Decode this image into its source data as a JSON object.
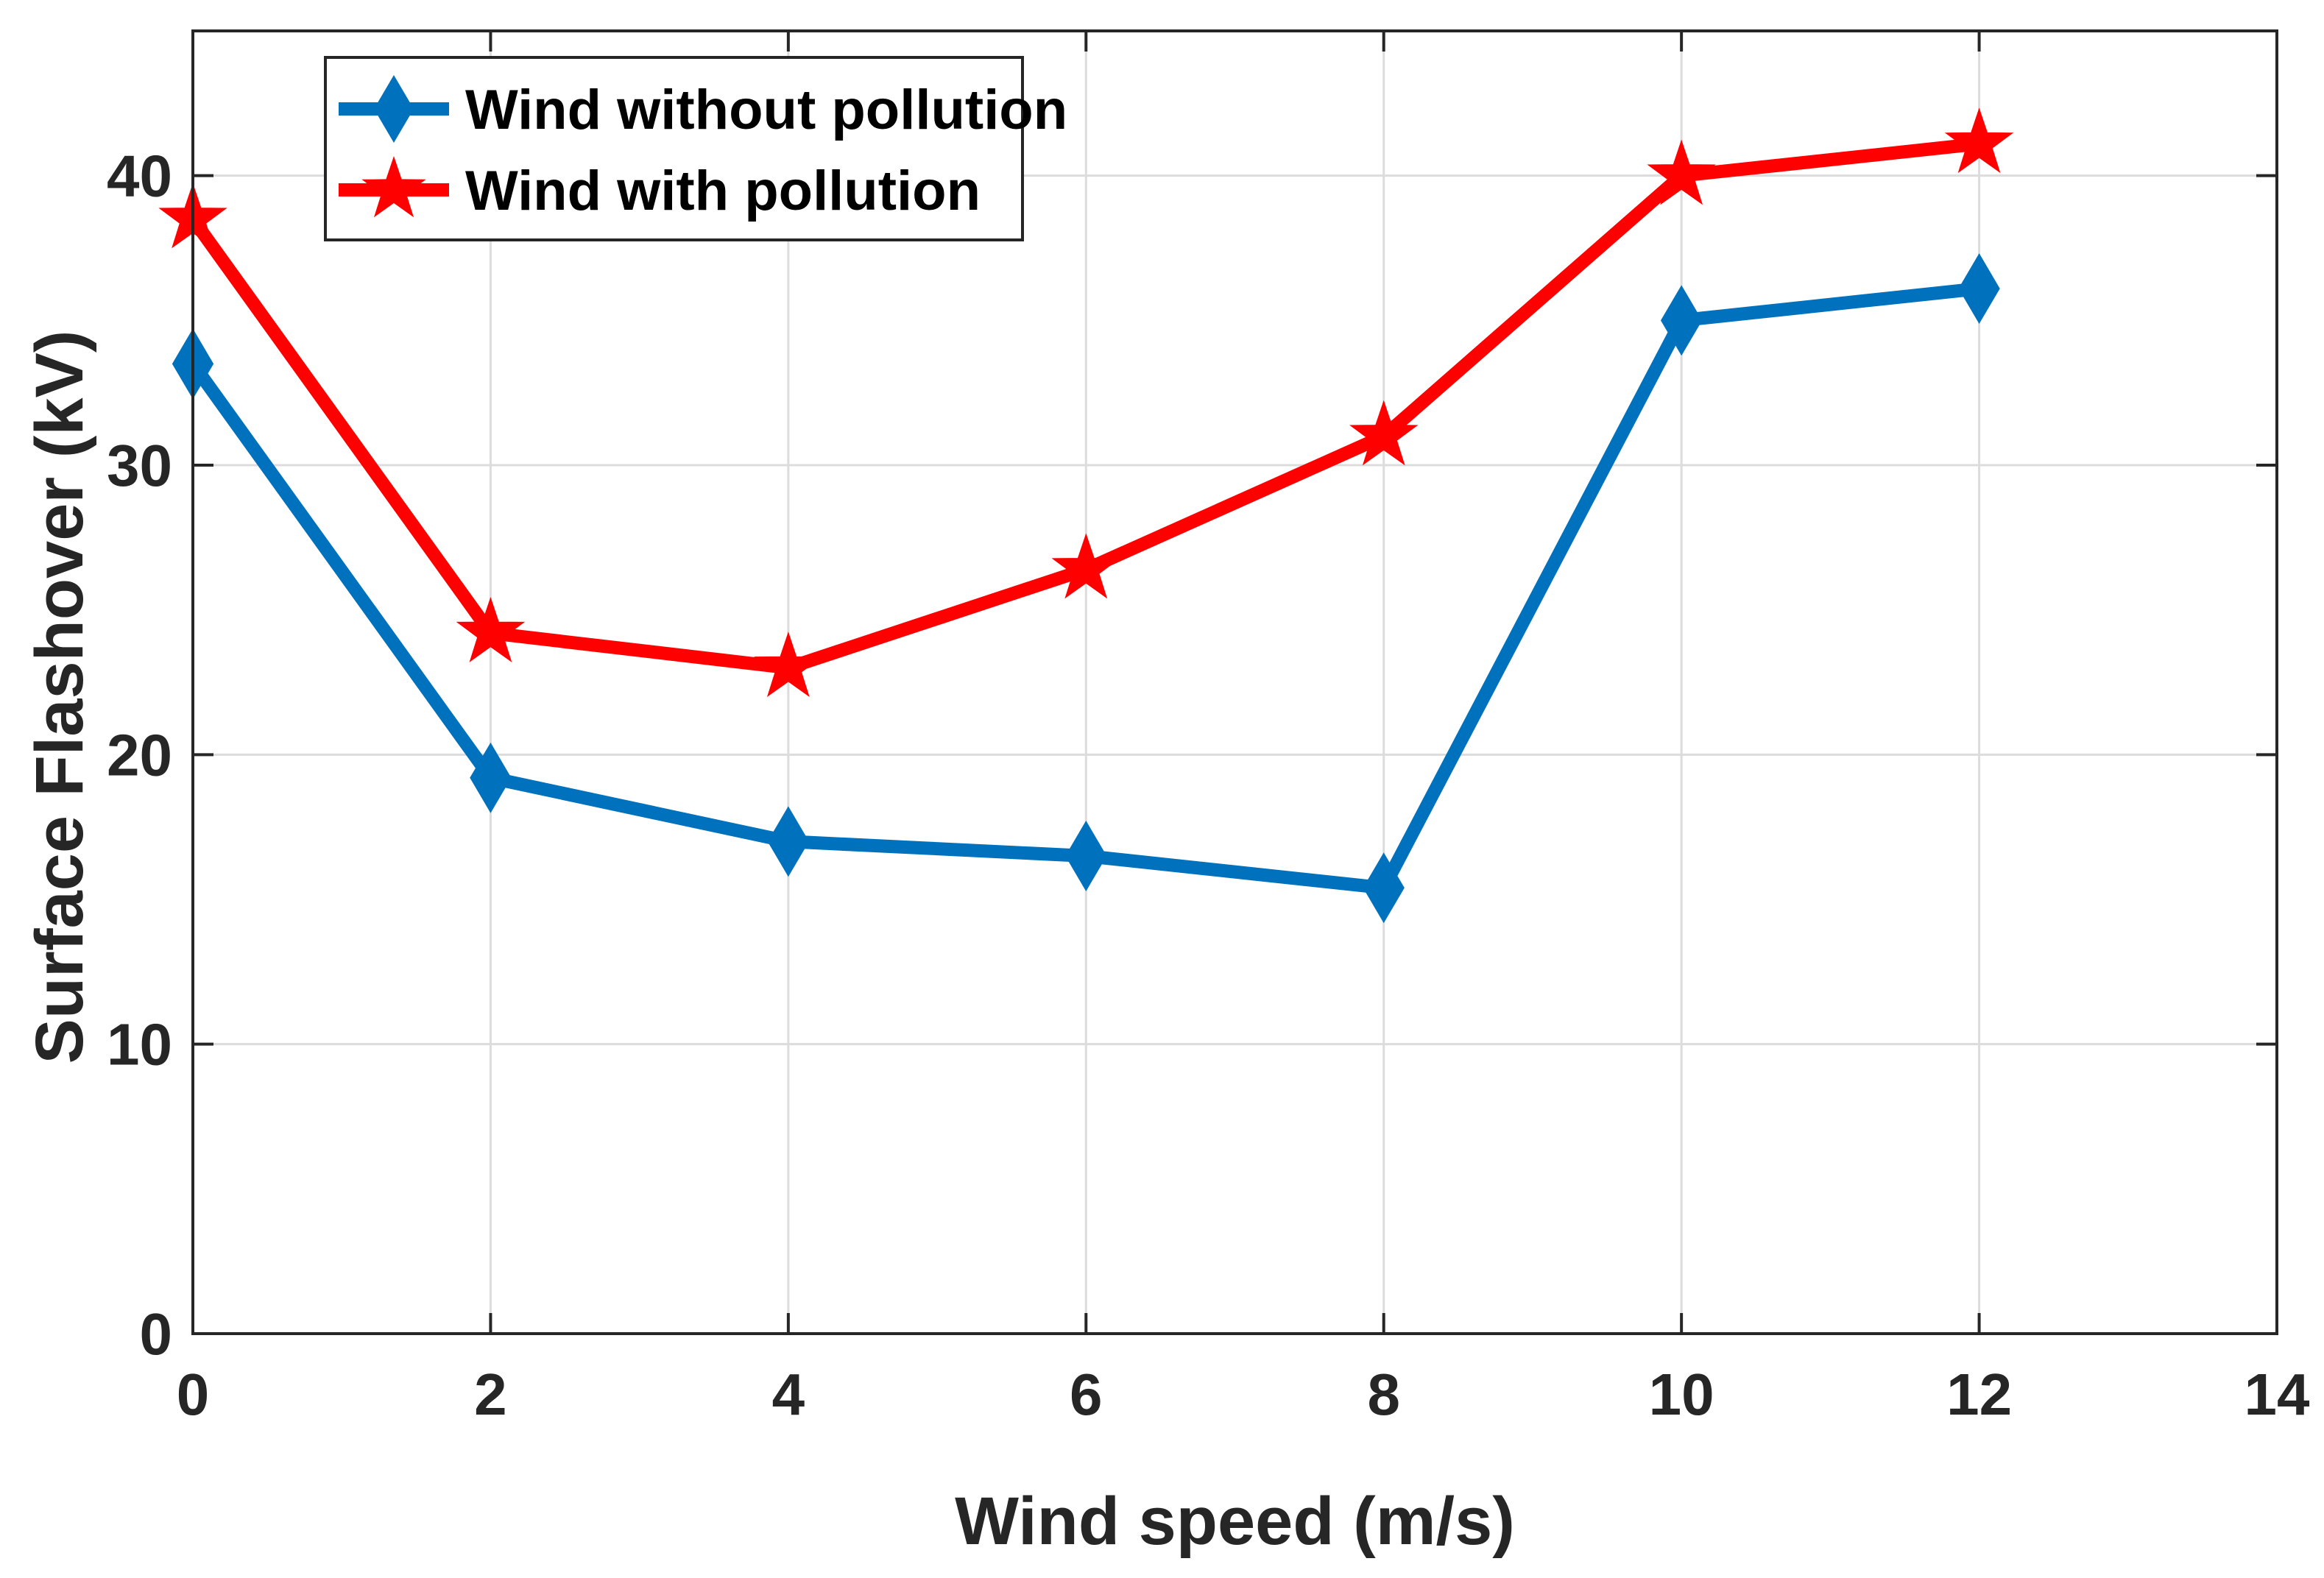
{
  "chart_data": {
    "type": "line",
    "title": "",
    "xlabel": "Wind speed (m/s)",
    "ylabel": "Surface Flashover (kV)",
    "xlim": [
      0,
      14
    ],
    "ylim": [
      0,
      45
    ],
    "xticks": [
      0,
      2,
      4,
      6,
      8,
      10,
      12,
      14
    ],
    "yticks": [
      0,
      10,
      20,
      30,
      40
    ],
    "xtick_labels": [
      "0",
      "2",
      "4",
      "6",
      "8",
      "10",
      "12",
      "14"
    ],
    "ytick_labels": [
      "0",
      "10",
      "20",
      "30",
      "40"
    ],
    "grid": true,
    "legend_position": "top-left",
    "series": [
      {
        "name": "Wind without pollution",
        "color": "#0072BD",
        "marker": "diamond",
        "x": [
          0,
          2,
          4,
          6,
          8,
          10,
          12
        ],
        "values": [
          33.5,
          19.2,
          17.0,
          16.5,
          15.4,
          35.0,
          36.1
        ]
      },
      {
        "name": "Wind with pollution",
        "color": "#FF0000",
        "marker": "star",
        "x": [
          0,
          2,
          4,
          6,
          8,
          10,
          12
        ],
        "values": [
          38.5,
          24.2,
          23.0,
          26.4,
          31.0,
          40.0,
          41.1
        ]
      }
    ]
  }
}
